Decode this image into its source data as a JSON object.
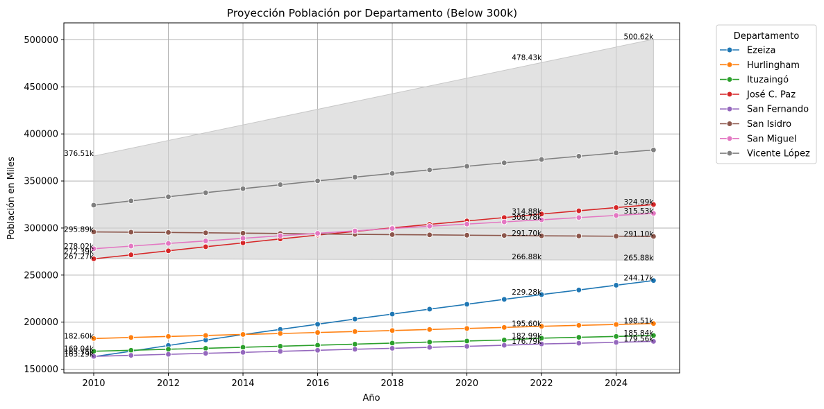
{
  "chart_data": {
    "type": "line",
    "title": "Proyección Población por Departamento (Below 300k)",
    "xlabel": "Año",
    "ylabel": "Población en Miles",
    "xlim": [
      2009.2,
      2025.7
    ],
    "ylim": [
      146000,
      518000
    ],
    "x_ticks": [
      "2010",
      "2012",
      "2014",
      "2016",
      "2018",
      "2020",
      "2022",
      "2024"
    ],
    "y_ticks": [
      "150000",
      "200000",
      "250000",
      "300000",
      "350000",
      "400000",
      "450000",
      "500000"
    ],
    "grid": true,
    "legend": {
      "title": "Departamento",
      "placement": "outside-right"
    },
    "x": [
      2010,
      2011,
      2012,
      2013,
      2014,
      2015,
      2016,
      2017,
      2018,
      2019,
      2020,
      2021,
      2022,
      2023,
      2024,
      2025
    ],
    "series": [
      {
        "name": "Ezeiza",
        "color": "#1f77b4",
        "values": [
          163290,
          169100,
          175200,
          181000,
          186800,
          192300,
          197800,
          203300,
          208600,
          213800,
          219000,
          224200,
          229280,
          234200,
          239200,
          244170
        ]
      },
      {
        "name": "Hurlingham",
        "color": "#ff7f0e",
        "values": [
          182600,
          183700,
          184800,
          185800,
          186900,
          187900,
          189000,
          190000,
          191100,
          192200,
          193300,
          194400,
          195600,
          196600,
          197500,
          198510
        ]
      },
      {
        "name": "Ituzaingó",
        "color": "#2ca02c",
        "values": [
          169040,
          170100,
          171200,
          172200,
          173300,
          174400,
          175500,
          176600,
          177700,
          178800,
          179900,
          181000,
          182990,
          183900,
          184800,
          185840
        ]
      },
      {
        "name": "José C. Paz",
        "color": "#d62728",
        "values": [
          267270,
          271500,
          275800,
          280100,
          284200,
          288400,
          292500,
          296400,
          300200,
          303900,
          307500,
          311100,
          314880,
          318300,
          321700,
          324990
        ]
      },
      {
        "name": "San Fernando",
        "color": "#9467bd",
        "values": [
          163600,
          164700,
          165800,
          166900,
          167900,
          169000,
          170100,
          171200,
          172200,
          173200,
          174300,
          175400,
          176790,
          177600,
          178500,
          179560
        ]
      },
      {
        "name": "San Isidro",
        "color": "#8c564b",
        "values": [
          295890,
          295600,
          295300,
          294900,
          294600,
          294200,
          293700,
          293300,
          293000,
          292700,
          292400,
          292100,
          291700,
          291500,
          291300,
          291100
        ]
      },
      {
        "name": "San Miguel",
        "color": "#e377c2",
        "values": [
          278020,
          280800,
          283600,
          286300,
          289100,
          291800,
          294400,
          297000,
          299500,
          301900,
          304200,
          306500,
          308780,
          311100,
          313400,
          315530
        ]
      },
      {
        "name": "Vicente López",
        "color": "#7f7f7f",
        "values": [
          324300,
          328800,
          333200,
          337600,
          341800,
          346000,
          350100,
          354100,
          358000,
          361800,
          365600,
          369300,
          372800,
          376300,
          379800,
          383000
        ]
      }
    ],
    "band": {
      "color": "#d3d3d3",
      "x": [
        2010,
        2025
      ],
      "upper": [
        376510,
        500620
      ],
      "lower": [
        267270,
        265880
      ]
    },
    "annotations": [
      {
        "x": 2010,
        "y": 376510,
        "text": "376.51k"
      },
      {
        "x": 2010,
        "y": 295890,
        "text": "295.89k"
      },
      {
        "x": 2010,
        "y": 278020,
        "text": "278.02k"
      },
      {
        "x": 2010,
        "y": 272390,
        "text": "272.39k"
      },
      {
        "x": 2010,
        "y": 267270,
        "text": "267.27k"
      },
      {
        "x": 2010,
        "y": 182600,
        "text": "182.60k"
      },
      {
        "x": 2010,
        "y": 169040,
        "text": "169.04k"
      },
      {
        "x": 2010,
        "y": 165750,
        "text": "165.75k"
      },
      {
        "x": 2010,
        "y": 163290,
        "text": "163.29k"
      },
      {
        "x": 2022,
        "y": 478430,
        "text": "478.43k"
      },
      {
        "x": 2022,
        "y": 314880,
        "text": "314.88k"
      },
      {
        "x": 2022,
        "y": 308780,
        "text": "308.78k"
      },
      {
        "x": 2022,
        "y": 291700,
        "text": "291.70k"
      },
      {
        "x": 2022,
        "y": 266880,
        "text": "266.88k"
      },
      {
        "x": 2022,
        "y": 229280,
        "text": "229.28k"
      },
      {
        "x": 2022,
        "y": 195600,
        "text": "195.60k"
      },
      {
        "x": 2022,
        "y": 182990,
        "text": "182.99k"
      },
      {
        "x": 2022,
        "y": 176790,
        "text": "176.79k"
      },
      {
        "x": 2025,
        "y": 500620,
        "text": "500.62k"
      },
      {
        "x": 2025,
        "y": 324990,
        "text": "324.99k"
      },
      {
        "x": 2025,
        "y": 315530,
        "text": "315.53k"
      },
      {
        "x": 2025,
        "y": 291100,
        "text": "291.10k"
      },
      {
        "x": 2025,
        "y": 265880,
        "text": "265.88k"
      },
      {
        "x": 2025,
        "y": 244170,
        "text": "244.17k"
      },
      {
        "x": 2025,
        "y": 198510,
        "text": "198.51k"
      },
      {
        "x": 2025,
        "y": 185840,
        "text": "185.84k"
      },
      {
        "x": 2025,
        "y": 179560,
        "text": "179.56k"
      }
    ]
  }
}
